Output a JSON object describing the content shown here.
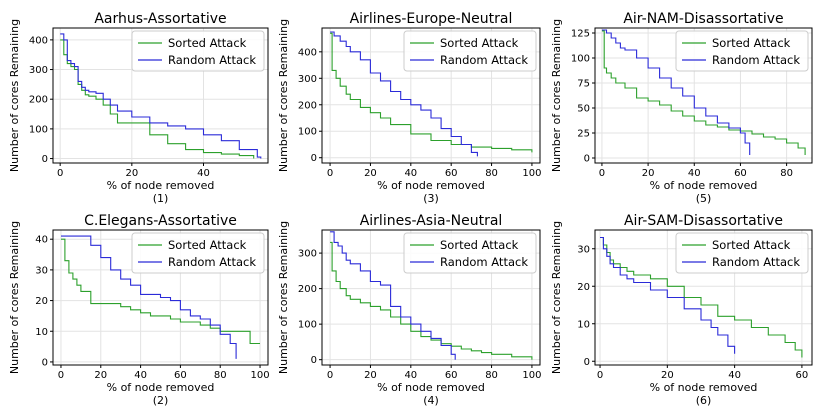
{
  "colors": {
    "sorted": "#2ca02c",
    "random": "#2b2bd8"
  },
  "chart_data": [
    {
      "type": "line",
      "title": "Aarhus-Assortative",
      "xlabel": "% of node removed",
      "ylabel": "Number of cores Remaining",
      "caption": "(1)",
      "xlim": [
        -2,
        58
      ],
      "ylim": [
        -15,
        440
      ],
      "xticks": [
        0,
        20,
        40
      ],
      "yticks": [
        0,
        100,
        200,
        300,
        400
      ],
      "legend": "top-right",
      "series": [
        {
          "name": "Sorted Attack",
          "color_key": "sorted",
          "x": [
            0,
            1,
            2,
            3,
            4,
            5,
            6,
            7,
            8,
            10,
            12,
            14,
            16,
            20,
            25,
            30,
            35,
            40,
            45,
            50,
            54
          ],
          "y": [
            400,
            350,
            320,
            310,
            300,
            250,
            230,
            215,
            210,
            200,
            180,
            150,
            120,
            120,
            80,
            50,
            30,
            20,
            15,
            10,
            0
          ]
        },
        {
          "name": "Random Attack",
          "color_key": "random",
          "x": [
            0,
            1,
            2,
            3,
            4,
            5,
            6,
            7,
            8,
            10,
            12,
            14,
            16,
            20,
            25,
            30,
            35,
            40,
            45,
            50,
            55,
            56
          ],
          "y": [
            420,
            400,
            330,
            320,
            310,
            260,
            240,
            230,
            225,
            220,
            200,
            180,
            160,
            140,
            120,
            110,
            100,
            80,
            60,
            30,
            5,
            0
          ]
        }
      ]
    },
    {
      "type": "line",
      "title": "Airlines-Europe-Neutral",
      "xlabel": "% of node removed",
      "ylabel": "Number of cores Remaining",
      "caption": "(3)",
      "xlim": [
        -4,
        104
      ],
      "ylim": [
        -20,
        490
      ],
      "xticks": [
        0,
        20,
        40,
        60,
        80,
        100
      ],
      "yticks": [
        0,
        100,
        200,
        300,
        400
      ],
      "legend": "top-right",
      "series": [
        {
          "name": "Sorted Attack",
          "color_key": "sorted",
          "x": [
            0,
            1,
            3,
            5,
            8,
            10,
            15,
            20,
            25,
            30,
            40,
            50,
            60,
            70,
            80,
            90,
            100
          ],
          "y": [
            470,
            330,
            300,
            270,
            240,
            220,
            190,
            170,
            150,
            125,
            90,
            65,
            50,
            40,
            35,
            30,
            20
          ]
        },
        {
          "name": "Random Attack",
          "color_key": "random",
          "x": [
            0,
            2,
            5,
            8,
            10,
            15,
            20,
            25,
            30,
            35,
            40,
            45,
            50,
            55,
            60,
            65,
            70,
            73
          ],
          "y": [
            475,
            460,
            440,
            420,
            400,
            370,
            320,
            290,
            250,
            220,
            200,
            180,
            150,
            110,
            80,
            50,
            20,
            5
          ]
        }
      ]
    },
    {
      "type": "line",
      "title": "Air-NAM-Disassortative",
      "xlabel": "% of node removed",
      "ylabel": "Number of cores Remaining",
      "caption": "(5)",
      "xlim": [
        -3,
        91
      ],
      "ylim": [
        -5,
        130
      ],
      "xticks": [
        0,
        20,
        40,
        60,
        80
      ],
      "yticks": [
        0,
        25,
        50,
        75,
        100,
        125
      ],
      "legend": "top-right",
      "series": [
        {
          "name": "Sorted Attack",
          "color_key": "sorted",
          "x": [
            0,
            1,
            2,
            4,
            6,
            10,
            15,
            20,
            25,
            30,
            35,
            40,
            45,
            50,
            55,
            60,
            65,
            70,
            75,
            80,
            85,
            88
          ],
          "y": [
            127,
            90,
            85,
            80,
            75,
            70,
            60,
            57,
            53,
            47,
            42,
            37,
            33,
            31,
            28,
            27,
            24,
            21,
            19,
            15,
            10,
            3
          ]
        },
        {
          "name": "Random Attack",
          "color_key": "random",
          "x": [
            0,
            2,
            4,
            6,
            8,
            10,
            15,
            20,
            25,
            30,
            35,
            40,
            45,
            50,
            55,
            60,
            62,
            64
          ],
          "y": [
            128,
            125,
            120,
            115,
            110,
            108,
            100,
            90,
            80,
            70,
            62,
            50,
            42,
            35,
            30,
            25,
            15,
            3
          ]
        }
      ]
    },
    {
      "type": "line",
      "title": "C.Elegans-Assortative",
      "xlabel": "% of node removed",
      "ylabel": "Number of cores Remaining",
      "caption": "(2)",
      "xlim": [
        -4,
        104
      ],
      "ylim": [
        -1,
        43
      ],
      "xticks": [
        0,
        20,
        40,
        60,
        80,
        100
      ],
      "yticks": [
        0,
        10,
        20,
        30,
        40
      ],
      "legend": "top-right",
      "series": [
        {
          "name": "Sorted Attack",
          "color_key": "sorted",
          "x": [
            0,
            2,
            4,
            6,
            8,
            10,
            15,
            20,
            25,
            30,
            35,
            40,
            45,
            50,
            55,
            60,
            65,
            70,
            75,
            80,
            85,
            90,
            95,
            100
          ],
          "y": [
            40,
            33,
            29,
            27,
            25,
            23,
            19,
            19,
            19,
            18,
            17,
            16,
            15,
            15,
            14,
            13,
            13,
            12,
            11,
            10,
            10,
            10,
            6,
            6
          ]
        },
        {
          "name": "Random Attack",
          "color_key": "random",
          "x": [
            0,
            5,
            10,
            15,
            20,
            25,
            30,
            35,
            40,
            45,
            50,
            55,
            60,
            65,
            70,
            75,
            80,
            85,
            88
          ],
          "y": [
            41,
            41,
            41,
            38,
            34,
            30,
            27,
            25,
            22,
            22,
            21,
            20,
            17,
            15,
            14,
            12,
            9,
            6,
            1
          ]
        }
      ]
    },
    {
      "type": "line",
      "title": "Airlines-Asia-Neutral",
      "xlabel": "% of node removed",
      "ylabel": "Number of cores Remaining",
      "caption": "(4)",
      "xlim": [
        -4,
        104
      ],
      "ylim": [
        -15,
        365
      ],
      "xticks": [
        0,
        20,
        40,
        60,
        80,
        100
      ],
      "yticks": [
        0,
        100,
        200,
        300
      ],
      "legend": "top-right",
      "series": [
        {
          "name": "Sorted Attack",
          "color_key": "sorted",
          "x": [
            0,
            1,
            3,
            5,
            8,
            10,
            15,
            20,
            25,
            30,
            35,
            40,
            45,
            50,
            55,
            60,
            65,
            70,
            75,
            80,
            90,
            100
          ],
          "y": [
            330,
            250,
            220,
            200,
            180,
            170,
            160,
            150,
            140,
            120,
            100,
            80,
            65,
            55,
            45,
            38,
            30,
            25,
            20,
            15,
            8,
            0
          ]
        },
        {
          "name": "Random Attack",
          "color_key": "random",
          "x": [
            0,
            2,
            4,
            6,
            8,
            10,
            15,
            20,
            25,
            30,
            35,
            40,
            45,
            50,
            55,
            60,
            62
          ],
          "y": [
            360,
            330,
            320,
            300,
            280,
            270,
            250,
            220,
            210,
            150,
            120,
            100,
            80,
            60,
            40,
            15,
            0
          ]
        }
      ]
    },
    {
      "type": "line",
      "title": "Air-SAM-Disassortative",
      "xlabel": "% of node removed",
      "ylabel": "Number of cores Remaining",
      "caption": "(6)",
      "xlim": [
        -1.5,
        63
      ],
      "ylim": [
        -1,
        35
      ],
      "xticks": [
        0,
        20,
        40,
        60
      ],
      "yticks": [
        0,
        10,
        20,
        30
      ],
      "legend": "top-right",
      "series": [
        {
          "name": "Sorted Attack",
          "color_key": "sorted",
          "x": [
            0,
            1,
            2,
            3,
            4,
            6,
            8,
            10,
            15,
            20,
            25,
            30,
            35,
            40,
            45,
            50,
            55,
            58,
            60
          ],
          "y": [
            33,
            31,
            29,
            27,
            26,
            25,
            24,
            23,
            22,
            20,
            17,
            15,
            12,
            11,
            9,
            7,
            5,
            3,
            1
          ]
        },
        {
          "name": "Random Attack",
          "color_key": "random",
          "x": [
            0,
            1,
            2,
            3,
            4,
            6,
            8,
            10,
            15,
            20,
            25,
            30,
            33,
            35,
            38,
            40
          ],
          "y": [
            33,
            30,
            28,
            26,
            25,
            23,
            22,
            21,
            19,
            17,
            14,
            11,
            9,
            7,
            4,
            2
          ]
        }
      ]
    }
  ]
}
